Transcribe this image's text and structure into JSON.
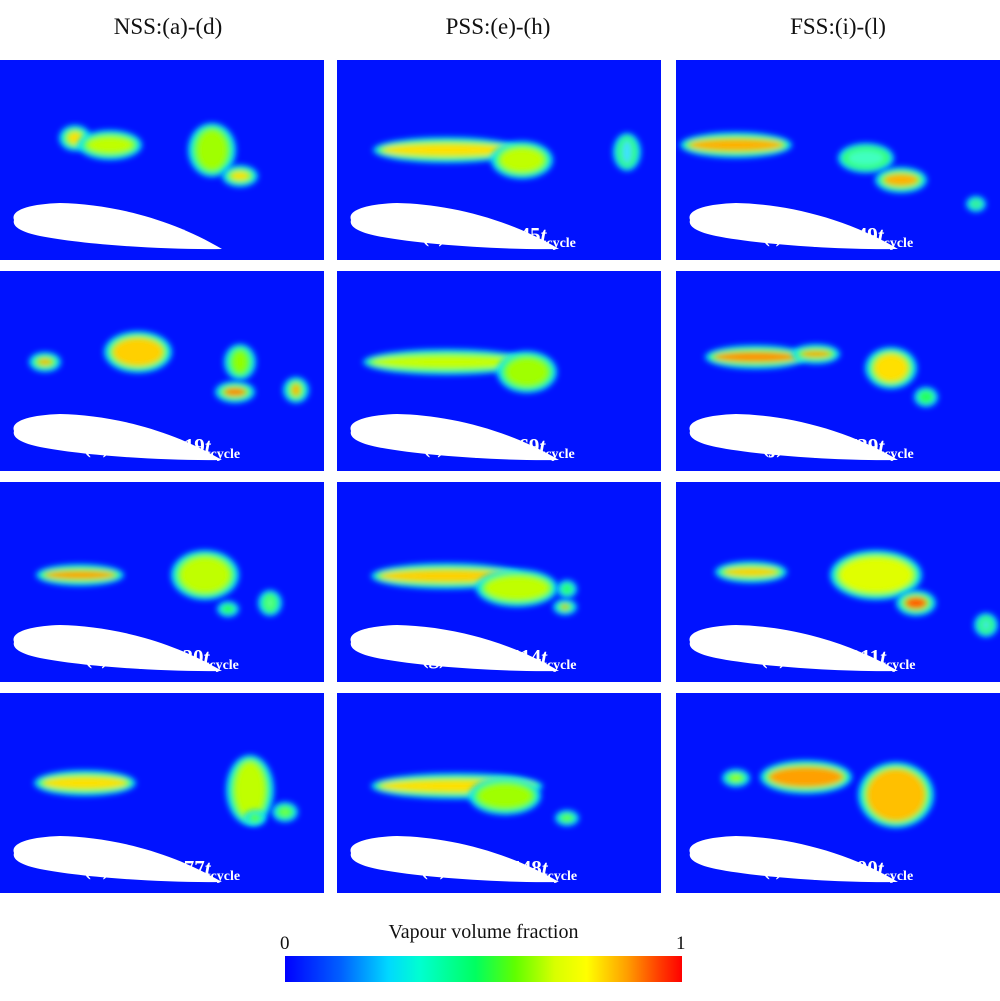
{
  "columns": [
    {
      "title": "NSS:(a)-(d)"
    },
    {
      "title": "PSS:(e)-(h)"
    },
    {
      "title": "FSS:(i)-(l)"
    }
  ],
  "panels": [
    {
      "label": "(a)",
      "base": "t=t",
      "zero": "0",
      "offset": "",
      "cycle": ""
    },
    {
      "label": "(b)",
      "base": "t=t",
      "zero": "0",
      "offset": "+0.019t",
      "cycle": "cycle"
    },
    {
      "label": "(c)",
      "base": "t=t",
      "zero": "0",
      "offset": "+0.120t",
      "cycle": "cycle"
    },
    {
      "label": "(d)",
      "base": "t=t",
      "zero": "0",
      "offset": "+0.277t",
      "cycle": "cycle"
    },
    {
      "label": "(e)",
      "base": "t=t",
      "zero": "0",
      "offset": "+0.345t",
      "cycle": "cycle"
    },
    {
      "label": "(f)",
      "base": "t=t",
      "zero": "0",
      "offset": "+0.469t",
      "cycle": "cycle"
    },
    {
      "label": "(g)",
      "base": "t=t",
      "zero": "0",
      "offset": "+0.514t",
      "cycle": "cycle"
    },
    {
      "label": "(h)",
      "base": "t=t",
      "zero": "0",
      "offset": "+0.548t",
      "cycle": "cycle"
    },
    {
      "label": "(i)",
      "base": "t=t",
      "zero": "0",
      "offset": "+0.649t",
      "cycle": "cycle"
    },
    {
      "label": "(j)",
      "base": "t=t",
      "zero": "0",
      "offset": "+0.739t",
      "cycle": "cycle"
    },
    {
      "label": "(k)",
      "base": "t=t",
      "zero": "0",
      "offset": "+0.911t",
      "cycle": "cycle"
    },
    {
      "label": "(l)",
      "base": "t=t",
      "zero": "0",
      "offset": "+0.990t",
      "cycle": "cycle"
    }
  ],
  "colorbar": {
    "title": "Vapour volume fraction",
    "min_label": "0",
    "max_label": "1"
  },
  "colors": {
    "background": "#0012ff",
    "foil": "#ffffff",
    "low": "#0000ff",
    "high": "#ff0000"
  }
}
